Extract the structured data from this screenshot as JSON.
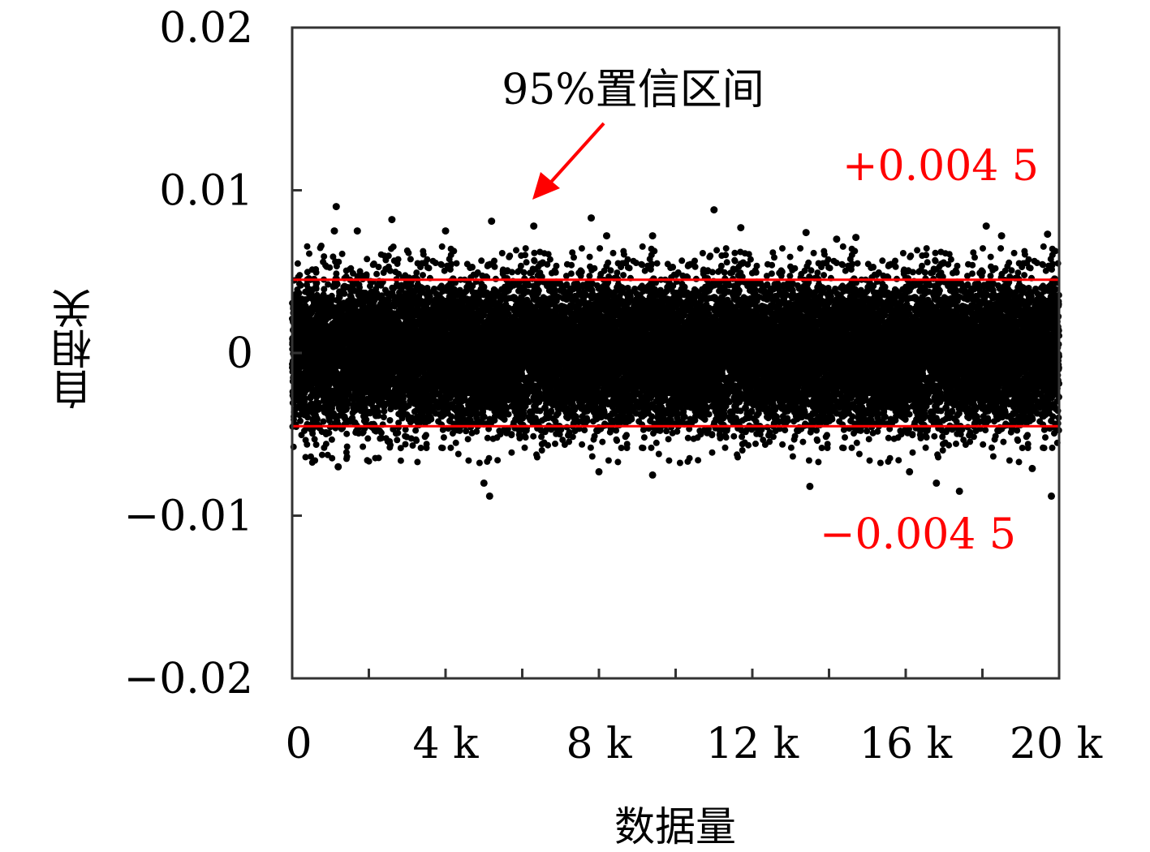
{
  "chart_data": {
    "type": "scatter",
    "title": "",
    "xlabel": "数据量",
    "ylabel": "自相关",
    "xlim": [
      0,
      20000
    ],
    "ylim": [
      -0.02,
      0.02
    ],
    "x_ticks": [
      0,
      4000,
      8000,
      12000,
      16000,
      20000
    ],
    "x_tick_labels": [
      "0",
      "4 k",
      "8 k",
      "12 k",
      "16 k",
      "20 k"
    ],
    "x_minor_ticks": [
      2000,
      6000,
      10000,
      14000,
      18000
    ],
    "y_ticks": [
      0.02,
      0.01,
      0,
      -0.01,
      -0.02
    ],
    "y_tick_labels": [
      "0.02",
      "0.01",
      "0",
      "−0.01",
      "−0.02"
    ],
    "grid": false,
    "point_color": "#000000",
    "n_points": 20000,
    "confidence_interval": {
      "label": "95%置信区间",
      "upper": 0.0045,
      "lower": -0.0045,
      "upper_label": "+0.004 5",
      "lower_label": "−0.004 5",
      "color": "#ff0000"
    },
    "outliers": [
      {
        "x": 1150,
        "y": 0.009
      },
      {
        "x": 1100,
        "y": 0.0075
      },
      {
        "x": 1700,
        "y": 0.0075
      },
      {
        "x": 2600,
        "y": 0.0082
      },
      {
        "x": 4000,
        "y": 0.0075
      },
      {
        "x": 5200,
        "y": 0.0081
      },
      {
        "x": 6300,
        "y": 0.0078
      },
      {
        "x": 7800,
        "y": 0.0083
      },
      {
        "x": 8200,
        "y": 0.0072
      },
      {
        "x": 9400,
        "y": 0.0072
      },
      {
        "x": 11000,
        "y": 0.0088
      },
      {
        "x": 11700,
        "y": 0.0077
      },
      {
        "x": 13400,
        "y": 0.0074
      },
      {
        "x": 14200,
        "y": 0.007
      },
      {
        "x": 14700,
        "y": 0.0071
      },
      {
        "x": 18100,
        "y": 0.0078
      },
      {
        "x": 18500,
        "y": 0.0072
      },
      {
        "x": 19700,
        "y": 0.0073
      },
      {
        "x": 5000,
        "y": -0.008
      },
      {
        "x": 5150,
        "y": -0.0088
      },
      {
        "x": 1200,
        "y": -0.007
      },
      {
        "x": 8000,
        "y": -0.0073
      },
      {
        "x": 9400,
        "y": -0.0075
      },
      {
        "x": 13500,
        "y": -0.0082
      },
      {
        "x": 16100,
        "y": -0.0073
      },
      {
        "x": 16800,
        "y": -0.008
      },
      {
        "x": 17400,
        "y": -0.0085
      },
      {
        "x": 19800,
        "y": -0.0088
      },
      {
        "x": 19300,
        "y": -0.0071
      }
    ]
  }
}
